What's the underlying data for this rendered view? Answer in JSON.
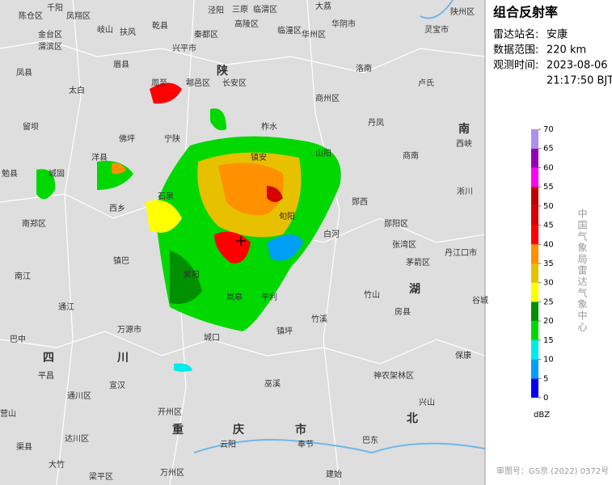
{
  "panel": {
    "title": "组合反射率",
    "rows": [
      {
        "label": "雷达站名:",
        "value": "安康"
      },
      {
        "label": "数据范围:",
        "value": "220 km"
      },
      {
        "label": "观测时间:",
        "value": "2023-08-06"
      }
    ],
    "time_extra": "21:17:50 BJT",
    "agency": "中国气象局雷达气象中心",
    "approval": "审图号：GS京 (2022) 0372号"
  },
  "legend": {
    "unit": "dBZ",
    "ticks": [
      0,
      5,
      10,
      15,
      20,
      25,
      30,
      35,
      40,
      45,
      50,
      55,
      60,
      65,
      70
    ],
    "colors": [
      "#0000f6",
      "#01a0f6",
      "#00ecec",
      "#00d800",
      "#019000",
      "#ffff00",
      "#e7c000",
      "#ff9000",
      "#ff0000",
      "#d60000",
      "#c00000",
      "#ff00f0",
      "#9600b4",
      "#ad90f0"
    ]
  },
  "map": {
    "labels": [
      "千阳",
      "凤翔区",
      "陈仓区",
      "金台区",
      "渭滨区",
      "岐山",
      "扶风",
      "乾县",
      "兴平市",
      "泾阳",
      "三原",
      "临渭区",
      "大荔",
      "华阴市",
      "华州区",
      "临潼区",
      "高陵区",
      "秦都区",
      "长安区",
      "周至",
      "鄠邑区",
      "眉县",
      "凤县",
      "太白",
      "留坝",
      "佛坪",
      "宁陕",
      "柞水",
      "商州区",
      "洛南",
      "丹凤",
      "商南",
      "山阳",
      "镇安",
      "洋县",
      "城固",
      "勉县",
      "南郑区",
      "西乡",
      "石泉",
      "旬阳",
      "白河",
      "郧西",
      "郧阳区",
      "张湾区",
      "茅箭区",
      "丹江口市",
      "镇巴",
      "紫阳",
      "岚皋",
      "平利",
      "竹山",
      "房县",
      "镇坪",
      "竹溪",
      "万源市",
      "城口",
      "通江",
      "南江",
      "宣汉",
      "开州区",
      "巫溪",
      "神农架林区",
      "保康",
      "兴山",
      "奉节",
      "云阳",
      "万州区",
      "梁平区",
      "达川区",
      "渠县",
      "平昌",
      "巴中",
      "通川区",
      "大竹",
      "营山",
      "谷城",
      "西峡",
      "淅川",
      "卢氏",
      "灵宝市",
      "陕州区",
      "建始",
      "巴东",
      "陕",
      "四",
      "川",
      "重",
      "庆",
      "市",
      "湖",
      "北",
      "南"
    ]
  }
}
